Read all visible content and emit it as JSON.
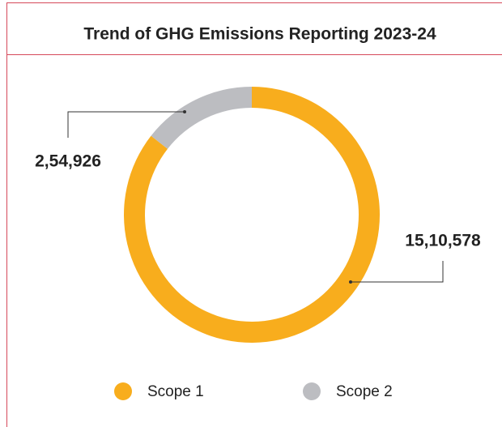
{
  "chart_data": {
    "type": "donut",
    "title": "Trend of GHG Emissions Reporting 2023-24",
    "categories": [
      "Scope 1",
      "Scope 2"
    ],
    "values": [
      1510578,
      254926
    ],
    "value_labels": [
      "15,10,578",
      "2,54,926"
    ],
    "colors": [
      "#f8ad1d",
      "#bcbdc1"
    ],
    "legend": "bottom"
  }
}
